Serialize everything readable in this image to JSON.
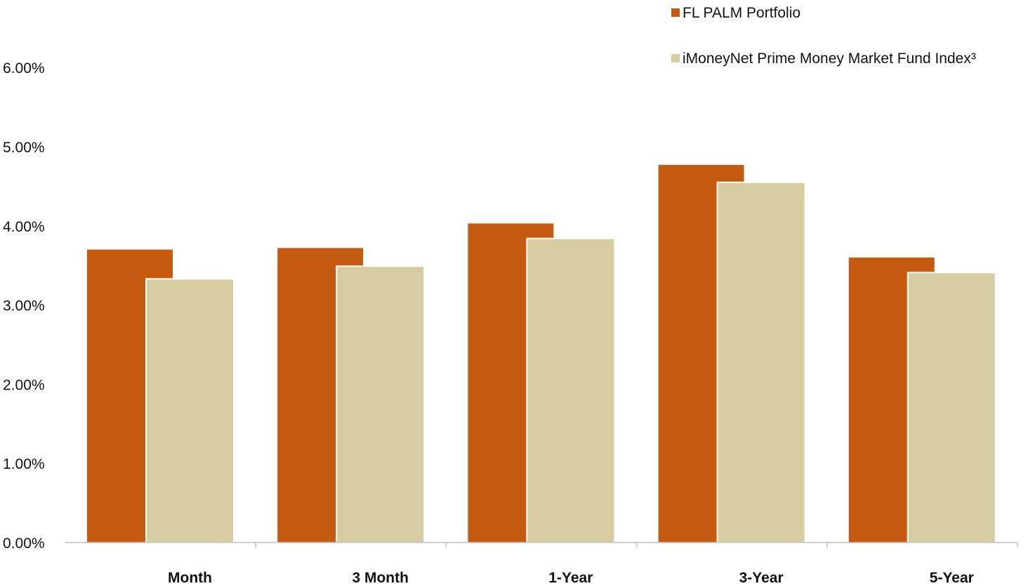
{
  "chart_data": {
    "type": "bar",
    "categories": [
      "Month",
      "3 Month",
      "1-Year",
      "3-Year",
      "5-Year"
    ],
    "series": [
      {
        "name": "FL PALM Portfolio",
        "values": [
          3.7,
          3.72,
          4.03,
          4.77,
          3.6
        ],
        "color": "#C55A11"
      },
      {
        "name": "iMoneyNet Prime Money Market Fund Index³",
        "values": [
          3.33,
          3.49,
          3.84,
          4.55,
          3.41
        ],
        "color": "#D6CCA1"
      }
    ],
    "yticks": [
      "0.00%",
      "1.00%",
      "2.00%",
      "3.00%",
      "4.00%",
      "5.00%",
      "6.00%"
    ],
    "ylim": [
      0,
      6
    ],
    "legend_position": "top-right",
    "grid": false,
    "title": "",
    "xlabel": "",
    "ylabel": ""
  }
}
